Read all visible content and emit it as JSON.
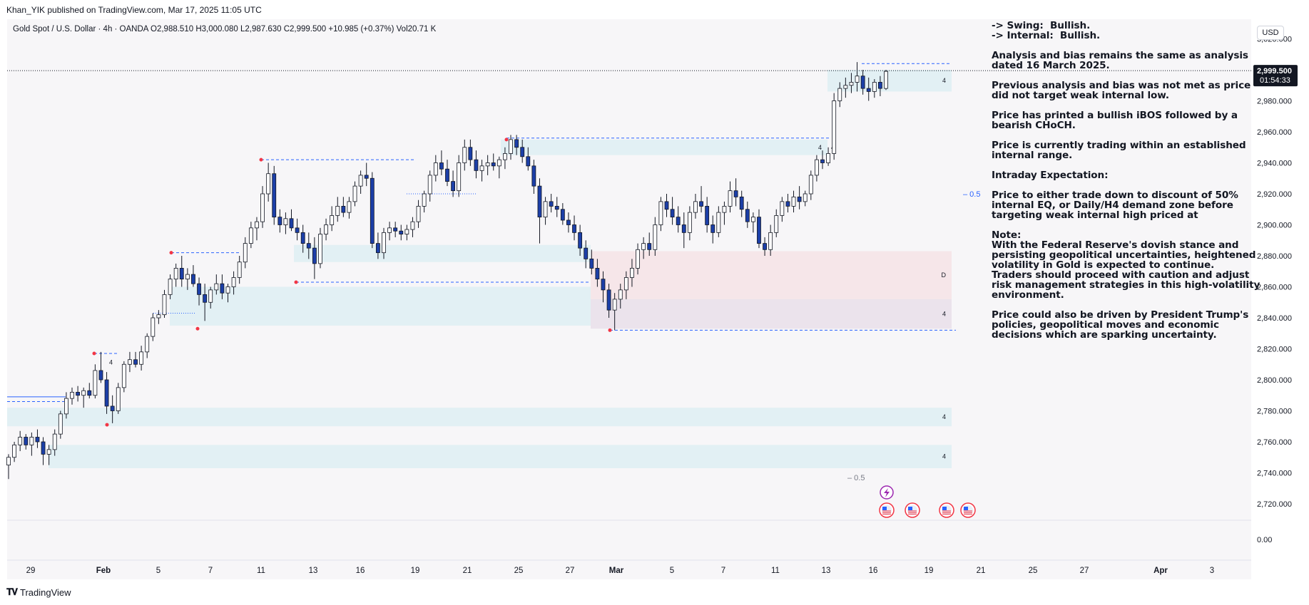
{
  "header": {
    "published": "Khan_YIK published on TradingView.com, Mar 17, 2025 11:05 UTC"
  },
  "legend": {
    "text": "Gold Spot / U.S. Dollar · 4h · OANDA  O2,988.510  H3,000.080  L2,987.630  C2,999.500  +10.985 (+0.37%)  Vol20.71 K"
  },
  "currency_button": "USD",
  "price_axis": {
    "ticks": [
      "3,020.000",
      "3,000.000",
      "2,980.000",
      "2,960.000",
      "2,940.000",
      "2,920.000",
      "2,900.000",
      "2,880.000",
      "2,860.000",
      "2,840.000",
      "2,820.000",
      "2,800.000",
      "2,780.000",
      "2,760.000",
      "2,740.000",
      "2,720.000"
    ],
    "last_price": "2,999.500",
    "countdown": "01:54:33",
    "volume_tick": "0.00"
  },
  "time_axis": {
    "ticks": [
      "29",
      "Feb",
      "5",
      "7",
      "11",
      "13",
      "16",
      "19",
      "21",
      "25",
      "27",
      "Mar",
      "5",
      "7",
      "11",
      "13",
      "16",
      "19",
      "21",
      "25",
      "27",
      "Apr",
      "3"
    ]
  },
  "annotations": {
    "zone_labels": [
      "4",
      "4",
      "D",
      "4",
      "4",
      "4",
      "4"
    ],
    "eq_label_right": "– 0.5",
    "eq_label_bottom": "– 0.5"
  },
  "note_lines": [
    "-> Swing:  Bullish.",
    "-> Internal:  Bullish.",
    "",
    "Analysis and bias remains the same as analysis",
    "dated 16 March 2025.",
    "",
    "Previous analysis and bias was not met as price",
    "did not target weak internal low.",
    "",
    "Price has printed a bullish iBOS followed by a",
    "bearish CHoCH.",
    "",
    "Price is currently trading within an established",
    "internal range.",
    "",
    "Intraday Expectation:",
    "",
    "Price to either trade down to discount of 50%",
    "internal EQ, or Daily/H4 demand zone before",
    "targeting weak internal high priced at",
    "",
    "Note:",
    "With the Federal Reserve's dovish stance and",
    "persisting geopolitical uncertainties, heightened",
    "volatility in Gold is expected to continue.",
    "Traders should proceed with caution and adjust",
    "risk management strategies in this high-volatility",
    "environment.",
    "",
    "Price could also be driven by President Trump's",
    "policies, geopolitical moves and economic",
    "decisions which are sparking uncertainty."
  ],
  "footer": {
    "brand": "TradingView"
  },
  "chart_data": {
    "type": "candlestick",
    "symbol": "Gold Spot / U.S. Dollar",
    "timeframe": "4h",
    "exchange": "OANDA",
    "ylim": [
      2733,
      3025
    ],
    "grid": false,
    "colors": {
      "up": "#ffffff",
      "down": "#1c3fa8",
      "wick": "#131722",
      "zone_demand": "#dfeff3",
      "zone_supply": "#f5e4e7",
      "zone_mixed": "#e9e1ea",
      "line": "#2962ff"
    },
    "candles_ohlc": [
      [
        2745,
        2752,
        2736,
        2750
      ],
      [
        2750,
        2760,
        2747,
        2758
      ],
      [
        2758,
        2767,
        2754,
        2763
      ],
      [
        2763,
        2765,
        2755,
        2758
      ],
      [
        2758,
        2766,
        2751,
        2763
      ],
      [
        2763,
        2768,
        2756,
        2760
      ],
      [
        2760,
        2763,
        2745,
        2752
      ],
      [
        2752,
        2758,
        2745,
        2755
      ],
      [
        2755,
        2768,
        2751,
        2765
      ],
      [
        2765,
        2780,
        2762,
        2778
      ],
      [
        2778,
        2792,
        2775,
        2788
      ],
      [
        2788,
        2795,
        2784,
        2792
      ],
      [
        2792,
        2796,
        2786,
        2790
      ],
      [
        2790,
        2795,
        2782,
        2793
      ],
      [
        2793,
        2798,
        2788,
        2790
      ],
      [
        2790,
        2810,
        2788,
        2806
      ],
      [
        2806,
        2818,
        2798,
        2800
      ],
      [
        2800,
        2805,
        2778,
        2783
      ],
      [
        2783,
        2790,
        2772,
        2780
      ],
      [
        2780,
        2798,
        2778,
        2795
      ],
      [
        2795,
        2812,
        2792,
        2810
      ],
      [
        2810,
        2818,
        2805,
        2813
      ],
      [
        2813,
        2818,
        2808,
        2810
      ],
      [
        2810,
        2822,
        2806,
        2818
      ],
      [
        2818,
        2830,
        2814,
        2828
      ],
      [
        2828,
        2843,
        2825,
        2840
      ],
      [
        2840,
        2845,
        2836,
        2842
      ],
      [
        2842,
        2858,
        2840,
        2855
      ],
      [
        2855,
        2868,
        2852,
        2865
      ],
      [
        2865,
        2875,
        2860,
        2872
      ],
      [
        2872,
        2880,
        2860,
        2865
      ],
      [
        2865,
        2872,
        2858,
        2868
      ],
      [
        2868,
        2874,
        2860,
        2862
      ],
      [
        2862,
        2866,
        2848,
        2855
      ],
      [
        2855,
        2862,
        2838,
        2850
      ],
      [
        2850,
        2860,
        2846,
        2858
      ],
      [
        2858,
        2868,
        2855,
        2862
      ],
      [
        2862,
        2868,
        2852,
        2856
      ],
      [
        2856,
        2862,
        2850,
        2860
      ],
      [
        2860,
        2870,
        2855,
        2866
      ],
      [
        2866,
        2880,
        2862,
        2876
      ],
      [
        2876,
        2892,
        2872,
        2888
      ],
      [
        2888,
        2902,
        2885,
        2898
      ],
      [
        2898,
        2905,
        2890,
        2902
      ],
      [
        2902,
        2925,
        2898,
        2920
      ],
      [
        2920,
        2940,
        2915,
        2933
      ],
      [
        2933,
        2938,
        2900,
        2905
      ],
      [
        2905,
        2910,
        2895,
        2900
      ],
      [
        2900,
        2908,
        2894,
        2904
      ],
      [
        2904,
        2910,
        2896,
        2898
      ],
      [
        2898,
        2904,
        2890,
        2895
      ],
      [
        2895,
        2900,
        2882,
        2888
      ],
      [
        2888,
        2895,
        2878,
        2885
      ],
      [
        2885,
        2892,
        2865,
        2875
      ],
      [
        2875,
        2898,
        2872,
        2894
      ],
      [
        2894,
        2904,
        2890,
        2900
      ],
      [
        2900,
        2912,
        2896,
        2906
      ],
      [
        2906,
        2918,
        2902,
        2912
      ],
      [
        2912,
        2918,
        2905,
        2908
      ],
      [
        2908,
        2918,
        2904,
        2915
      ],
      [
        2915,
        2928,
        2912,
        2925
      ],
      [
        2925,
        2935,
        2920,
        2932
      ],
      [
        2932,
        2940,
        2925,
        2930
      ],
      [
        2930,
        2934,
        2885,
        2888
      ],
      [
        2888,
        2895,
        2878,
        2882
      ],
      [
        2882,
        2898,
        2878,
        2895
      ],
      [
        2895,
        2902,
        2890,
        2898
      ],
      [
        2898,
        2902,
        2892,
        2896
      ],
      [
        2896,
        2900,
        2890,
        2894
      ],
      [
        2894,
        2900,
        2890,
        2897
      ],
      [
        2897,
        2905,
        2892,
        2902
      ],
      [
        2902,
        2916,
        2898,
        2912
      ],
      [
        2912,
        2922,
        2908,
        2920
      ],
      [
        2920,
        2935,
        2915,
        2932
      ],
      [
        2932,
        2945,
        2928,
        2940
      ],
      [
        2940,
        2948,
        2932,
        2936
      ],
      [
        2936,
        2942,
        2925,
        2928
      ],
      [
        2928,
        2935,
        2918,
        2922
      ],
      [
        2922,
        2945,
        2918,
        2940
      ],
      [
        2940,
        2955,
        2935,
        2950
      ],
      [
        2950,
        2955,
        2938,
        2942
      ],
      [
        2942,
        2948,
        2930,
        2935
      ],
      [
        2935,
        2942,
        2928,
        2938
      ],
      [
        2938,
        2945,
        2932,
        2940
      ],
      [
        2940,
        2946,
        2935,
        2938
      ],
      [
        2938,
        2944,
        2930,
        2942
      ],
      [
        2942,
        2950,
        2936,
        2946
      ],
      [
        2946,
        2958,
        2942,
        2955
      ],
      [
        2955,
        2958,
        2945,
        2950
      ],
      [
        2950,
        2955,
        2940,
        2944
      ],
      [
        2944,
        2950,
        2935,
        2938
      ],
      [
        2938,
        2942,
        2920,
        2925
      ],
      [
        2925,
        2930,
        2888,
        2905
      ],
      [
        2905,
        2918,
        2900,
        2915
      ],
      [
        2915,
        2920,
        2908,
        2912
      ],
      [
        2912,
        2918,
        2905,
        2910
      ],
      [
        2910,
        2914,
        2900,
        2903
      ],
      [
        2903,
        2908,
        2895,
        2900
      ],
      [
        2900,
        2906,
        2890,
        2895
      ],
      [
        2895,
        2900,
        2880,
        2885
      ],
      [
        2885,
        2890,
        2872,
        2878
      ],
      [
        2878,
        2884,
        2868,
        2872
      ],
      [
        2872,
        2878,
        2860,
        2865
      ],
      [
        2865,
        2870,
        2850,
        2858
      ],
      [
        2858,
        2862,
        2840,
        2845
      ],
      [
        2845,
        2856,
        2832,
        2852
      ],
      [
        2852,
        2862,
        2846,
        2858
      ],
      [
        2858,
        2870,
        2852,
        2866
      ],
      [
        2866,
        2878,
        2860,
        2872
      ],
      [
        2872,
        2888,
        2868,
        2884
      ],
      [
        2884,
        2892,
        2878,
        2888
      ],
      [
        2888,
        2895,
        2880,
        2884
      ],
      [
        2884,
        2905,
        2880,
        2900
      ],
      [
        2900,
        2918,
        2896,
        2915
      ],
      [
        2915,
        2920,
        2905,
        2910
      ],
      [
        2910,
        2918,
        2900,
        2905
      ],
      [
        2905,
        2912,
        2895,
        2900
      ],
      [
        2900,
        2908,
        2885,
        2895
      ],
      [
        2895,
        2912,
        2890,
        2908
      ],
      [
        2908,
        2920,
        2904,
        2915
      ],
      [
        2915,
        2925,
        2908,
        2912
      ],
      [
        2912,
        2918,
        2895,
        2900
      ],
      [
        2900,
        2906,
        2888,
        2895
      ],
      [
        2895,
        2912,
        2892,
        2908
      ],
      [
        2908,
        2915,
        2900,
        2912
      ],
      [
        2912,
        2928,
        2908,
        2922
      ],
      [
        2922,
        2930,
        2912,
        2918
      ],
      [
        2918,
        2922,
        2905,
        2910
      ],
      [
        2910,
        2915,
        2898,
        2902
      ],
      [
        2902,
        2908,
        2895,
        2905
      ],
      [
        2905,
        2910,
        2885,
        2888
      ],
      [
        2888,
        2892,
        2880,
        2884
      ],
      [
        2884,
        2900,
        2880,
        2895
      ],
      [
        2895,
        2910,
        2892,
        2906
      ],
      [
        2906,
        2918,
        2902,
        2915
      ],
      [
        2915,
        2920,
        2908,
        2912
      ],
      [
        2912,
        2922,
        2908,
        2918
      ],
      [
        2918,
        2925,
        2910,
        2915
      ],
      [
        2915,
        2922,
        2912,
        2920
      ],
      [
        2920,
        2935,
        2916,
        2932
      ],
      [
        2932,
        2945,
        2928,
        2942
      ],
      [
        2942,
        2948,
        2936,
        2940
      ],
      [
        2940,
        2950,
        2938,
        2946
      ],
      [
        2946,
        2985,
        2942,
        2980
      ],
      [
        2980,
        2992,
        2976,
        2988
      ],
      [
        2988,
        2995,
        2982,
        2990
      ],
      [
        2990,
        2998,
        2985,
        2992
      ],
      [
        2992,
        3005,
        2986,
        2996
      ],
      [
        2996,
        3000,
        2984,
        2988
      ],
      [
        2988,
        2995,
        2980,
        2986
      ],
      [
        2986,
        2994,
        2982,
        2992
      ],
      [
        2992,
        2996,
        2983,
        2988
      ],
      [
        2988,
        3000,
        2987,
        2999
      ]
    ],
    "zones": [
      {
        "kind": "demand",
        "from": "Mar 14",
        "to": "Mar 20",
        "top": 3000,
        "bottom": 2986,
        "label": "4"
      },
      {
        "kind": "demand",
        "from": "Feb 24",
        "to": "Mar 14",
        "top": 2955,
        "bottom": 2945,
        "label": "4"
      },
      {
        "kind": "demand",
        "from": "Feb 13",
        "to": "Feb 28",
        "top": 2887,
        "bottom": 2876
      },
      {
        "kind": "demand",
        "from": "Feb 6",
        "to": "Feb 28",
        "top": 2860,
        "bottom": 2835
      },
      {
        "kind": "supply",
        "from": "Feb 28",
        "to": "Mar 20",
        "top": 2883,
        "bottom": 2852,
        "label": "D"
      },
      {
        "kind": "mixed",
        "from": "Feb 28",
        "to": "Mar 20",
        "top": 2852,
        "bottom": 2833,
        "label": "4"
      },
      {
        "kind": "demand",
        "from": "Jan 28",
        "to": "Mar 20",
        "top": 2782,
        "bottom": 2770,
        "label": "4"
      },
      {
        "kind": "demand",
        "from": "Jan 30",
        "to": "Mar 20",
        "top": 2758,
        "bottom": 2743,
        "label": "4"
      }
    ],
    "equilibrium_levels": [
      2920,
      2737
    ],
    "volume_axis_tick": 0
  }
}
